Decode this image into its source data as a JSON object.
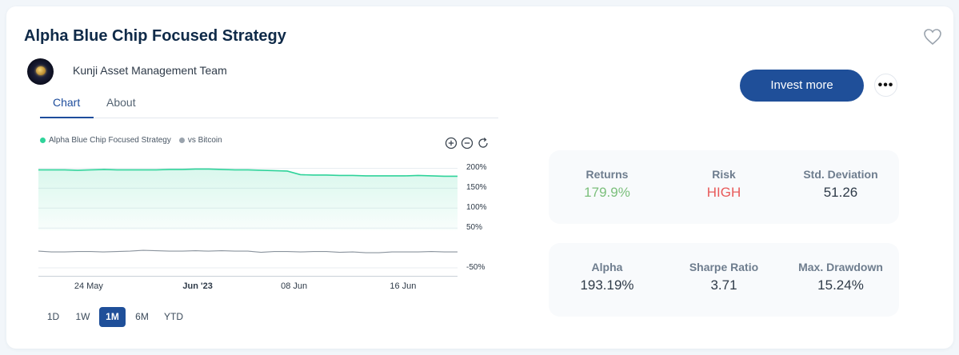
{
  "title": "Alpha Blue Chip Focused Strategy",
  "manager": "Kunji Asset Management Team",
  "tabs": [
    {
      "label": "Chart",
      "active": true
    },
    {
      "label": "About",
      "active": false
    }
  ],
  "legend": [
    {
      "label": "Alpha Blue Chip Focused Strategy",
      "color": "#2fd39a"
    },
    {
      "label": "vs Bitcoin",
      "color": "#9aa3ad"
    }
  ],
  "chart_tools": [
    "zoom-in-icon",
    "zoom-out-icon",
    "reset-icon"
  ],
  "chart_data": {
    "type": "area",
    "y_ticks": [
      "200%",
      "150%",
      "100%",
      "50%",
      "-50%"
    ],
    "x_ticks": [
      "24 May",
      "Jun '23",
      "08 Jun",
      "16 Jun"
    ],
    "series": [
      {
        "name": "Alpha Blue Chip Focused Strategy",
        "color": "#2fd39a",
        "values": [
          196,
          196,
          196,
          195,
          196,
          197,
          196,
          196,
          196,
          196,
          197,
          197,
          198,
          198,
          197,
          196,
          196,
          195,
          194,
          193,
          184,
          183,
          183,
          182,
          182,
          181,
          181,
          181,
          181,
          182,
          181,
          180,
          180
        ]
      },
      {
        "name": "vs Bitcoin",
        "color": "#8a939d",
        "values": [
          -8,
          -10,
          -10,
          -9,
          -9,
          -10,
          -9,
          -8,
          -6,
          -7,
          -8,
          -8,
          -7,
          -8,
          -7,
          -8,
          -8,
          -11,
          -9,
          -9,
          -10,
          -9,
          -9,
          -11,
          -10,
          -12,
          -12,
          -10,
          -10,
          -10,
          -9,
          -10,
          -10
        ]
      }
    ],
    "ylim": [
      -70,
      215
    ],
    "grid": true,
    "legend_position": "top-left"
  },
  "ranges": [
    {
      "label": "1D",
      "active": false
    },
    {
      "label": "1W",
      "active": false
    },
    {
      "label": "1M",
      "active": true
    },
    {
      "label": "6M",
      "active": false
    },
    {
      "label": "YTD",
      "active": false
    }
  ],
  "invest_label": "Invest more",
  "more_label": "•••",
  "stats_row1": [
    {
      "label": "Returns",
      "value": "179.9%",
      "color": "#7bbf7b"
    },
    {
      "label": "Risk",
      "value": "HIGH",
      "color": "#e85a5a"
    },
    {
      "label": "Std. Deviation",
      "value": "51.26",
      "color": "#2e3a48"
    }
  ],
  "stats_row2": [
    {
      "label": "Alpha",
      "value": "193.19%",
      "color": "#2e3a48"
    },
    {
      "label": "Sharpe Ratio",
      "value": "3.71",
      "color": "#2e3a48"
    },
    {
      "label": "Max. Drawdown",
      "value": "15.24%",
      "color": "#2e3a48"
    }
  ],
  "colors": {
    "accent": "#1f4f99",
    "positive": "#7bbf7b",
    "danger": "#e85a5a"
  }
}
